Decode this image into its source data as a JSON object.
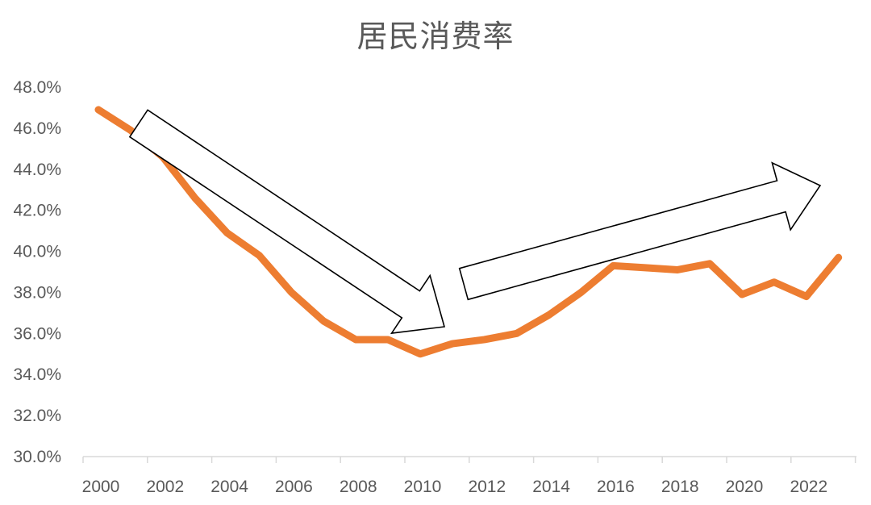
{
  "chart_data": {
    "type": "line",
    "title": "居民消费率",
    "xlabel": "",
    "ylabel": "",
    "x": [
      2000,
      2001,
      2002,
      2003,
      2004,
      2005,
      2006,
      2007,
      2008,
      2009,
      2010,
      2011,
      2012,
      2013,
      2014,
      2015,
      2016,
      2017,
      2018,
      2019,
      2020,
      2021,
      2022,
      2023
    ],
    "series": [
      {
        "name": "",
        "color": "#ed7d31",
        "values": [
          46.9,
          45.9,
          44.6,
          42.6,
          40.9,
          39.8,
          38.0,
          36.6,
          35.7,
          35.7,
          35.0,
          35.5,
          35.7,
          36.0,
          36.9,
          38.0,
          39.3,
          39.2,
          39.1,
          39.4,
          37.9,
          38.5,
          37.8,
          39.7
        ]
      }
    ],
    "ylim": [
      30.0,
      48.0
    ],
    "y_ticks": [
      "30.0%",
      "32.0%",
      "34.0%",
      "36.0%",
      "38.0%",
      "40.0%",
      "42.0%",
      "44.0%",
      "46.0%",
      "48.0%"
    ],
    "x_ticks": [
      "2000",
      "2002",
      "2004",
      "2006",
      "2008",
      "2010",
      "2012",
      "2014",
      "2016",
      "2018",
      "2020",
      "2022"
    ],
    "grid": false,
    "legend": "none",
    "annotations": [
      {
        "type": "arrow",
        "direction": "down",
        "from_year": 2001.5,
        "to_year": 2011
      },
      {
        "type": "arrow",
        "direction": "up",
        "from_year": 2011.8,
        "to_year": 2023
      }
    ]
  }
}
